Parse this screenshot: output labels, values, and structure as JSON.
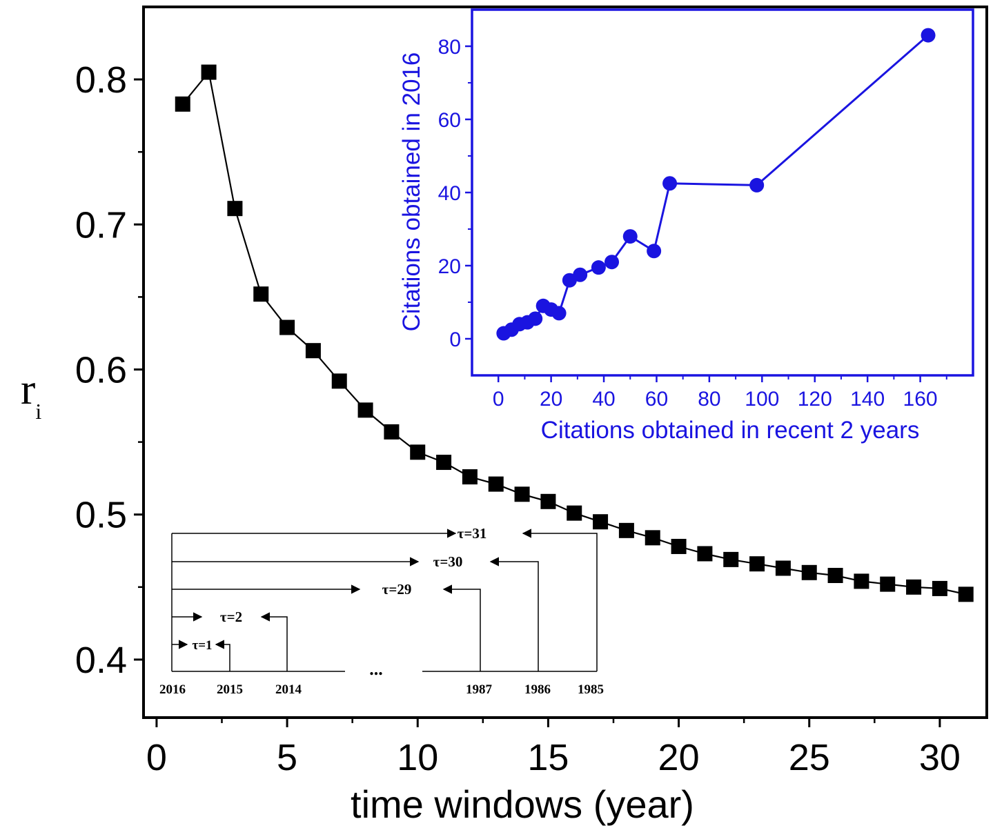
{
  "chart_data": [
    {
      "id": "main",
      "type": "line",
      "xlabel": "time windows (year)",
      "ylabel": "r",
      "ylabel_subscript": "i",
      "xlim": [
        -0.5,
        31.8
      ],
      "ylim": [
        0.36,
        0.85
      ],
      "xticks": [
        0,
        5,
        10,
        15,
        20,
        25,
        30
      ],
      "xtick_labels": [
        "0",
        "5",
        "10",
        "15",
        "20",
        "25",
        "30"
      ],
      "yticks": [
        0.4,
        0.5,
        0.6,
        0.7,
        0.8
      ],
      "ytick_labels": [
        "0.4",
        "0.5",
        "0.6",
        "0.7",
        "0.8"
      ],
      "grid": false,
      "color": "#000000",
      "marker": "square",
      "series": [
        {
          "x": [
            1,
            2,
            3,
            4,
            5,
            6,
            7,
            8,
            9,
            10,
            11,
            12,
            13,
            14,
            15,
            16,
            17,
            18,
            19,
            20,
            21,
            22,
            23,
            24,
            25,
            26,
            27,
            28,
            29,
            30,
            31
          ],
          "y": [
            0.783,
            0.805,
            0.711,
            0.652,
            0.629,
            0.613,
            0.592,
            0.572,
            0.557,
            0.543,
            0.536,
            0.526,
            0.521,
            0.514,
            0.509,
            0.501,
            0.495,
            0.489,
            0.484,
            0.478,
            0.473,
            0.469,
            0.466,
            0.463,
            0.46,
            0.458,
            0.454,
            0.452,
            0.45,
            0.449,
            0.445
          ]
        }
      ]
    },
    {
      "id": "inset",
      "type": "line",
      "xlabel": "Citations obtained in recent 2 years",
      "ylabel": "Citations obtained in 2016",
      "xlim": [
        -10,
        180
      ],
      "ylim": [
        -10,
        90
      ],
      "xticks": [
        0,
        20,
        40,
        60,
        80,
        100,
        120,
        140,
        160
      ],
      "xtick_labels": [
        "0",
        "20",
        "40",
        "60",
        "80",
        "100",
        "120",
        "140",
        "160"
      ],
      "yticks": [
        0,
        20,
        40,
        60,
        80
      ],
      "ytick_labels": [
        "0",
        "20",
        "40",
        "60",
        "80"
      ],
      "grid": false,
      "color": "#1a14e0",
      "marker": "circle",
      "series": [
        {
          "x": [
            2,
            5,
            8,
            11,
            14,
            17,
            20,
            23,
            27,
            31,
            38,
            43,
            50,
            59,
            65,
            98,
            163
          ],
          "y": [
            1.5,
            2.5,
            4,
            4.5,
            5.5,
            9,
            8,
            7,
            16,
            17.5,
            19.5,
            21,
            28,
            24,
            42.5,
            42,
            83
          ]
        }
      ]
    }
  ],
  "schematic": {
    "tau_labels": [
      "τ=31",
      "τ=30",
      "τ=29",
      "τ=2",
      "τ=1"
    ],
    "year_labels": [
      "2016",
      "2015",
      "2014",
      "1987",
      "1986",
      "1985"
    ],
    "ellipsis": "..."
  }
}
